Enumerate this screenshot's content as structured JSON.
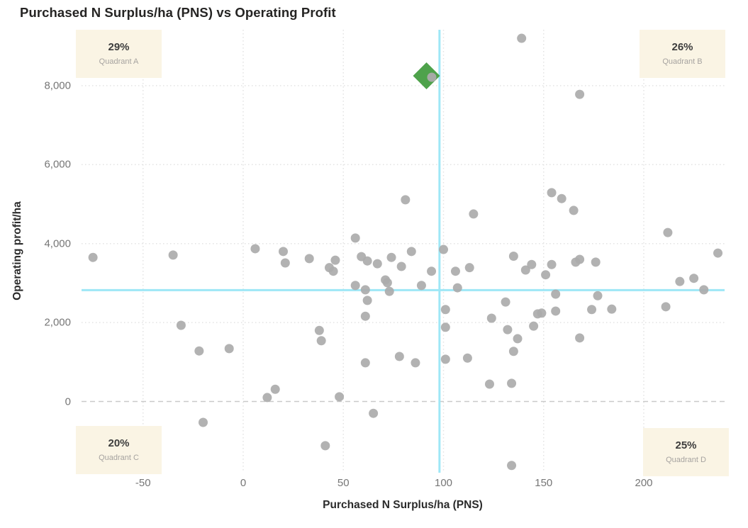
{
  "title": "Purchased N Surplus/ha (PNS) vs Operating Profit",
  "chart_data": {
    "type": "scatter",
    "title": "Purchased N Surplus/ha (PNS) vs Operating Profit",
    "xlabel": "Purchased N Surplus/ha (PNS)",
    "ylabel": "Operating profit/ha",
    "xlim": [
      -80,
      240
    ],
    "ylim": [
      -1800,
      9500
    ],
    "x_ticks": [
      -50,
      0,
      50,
      100,
      150,
      200
    ],
    "x_tick_labels": [
      "-50",
      "0",
      "50",
      "100",
      "150",
      "200"
    ],
    "y_ticks": [
      0,
      2000,
      4000,
      6000,
      8000
    ],
    "y_tick_labels": [
      "0",
      "2,000",
      "4,000",
      "6,000",
      "8,000"
    ],
    "grid": "dotted",
    "legend": "none",
    "reference_lines": {
      "x": 98,
      "y": 2820
    },
    "zero_line_y": 0,
    "points": [
      [
        -75,
        3650
      ],
      [
        -35,
        3710
      ],
      [
        6,
        3870
      ],
      [
        20,
        3800
      ],
      [
        21,
        3510
      ],
      [
        33,
        3620
      ],
      [
        46,
        3580
      ],
      [
        43,
        3390
      ],
      [
        45,
        3300
      ],
      [
        56,
        4140
      ],
      [
        59,
        3670
      ],
      [
        62,
        3560
      ],
      [
        67,
        3490
      ],
      [
        74,
        3650
      ],
      [
        79,
        3420
      ],
      [
        81,
        5110
      ],
      [
        84,
        3800
      ],
      [
        94,
        3300
      ],
      [
        89,
        2940
      ],
      [
        56,
        2940
      ],
      [
        61,
        2830
      ],
      [
        71,
        3080
      ],
      [
        72,
        3010
      ],
      [
        73,
        2790
      ],
      [
        139,
        9200
      ],
      [
        168,
        7780
      ],
      [
        94,
        8210
      ],
      [
        100,
        3850
      ],
      [
        106,
        3300
      ],
      [
        113,
        3390
      ],
      [
        115,
        4750
      ],
      [
        135,
        3680
      ],
      [
        141,
        3330
      ],
      [
        144,
        3470
      ],
      [
        151,
        3210
      ],
      [
        154,
        5290
      ],
      [
        159,
        5140
      ],
      [
        165,
        4840
      ],
      [
        154,
        3470
      ],
      [
        166,
        3530
      ],
      [
        168,
        3600
      ],
      [
        176,
        3530
      ],
      [
        212,
        4280
      ],
      [
        218,
        3040
      ],
      [
        225,
        3120
      ],
      [
        230,
        2830
      ],
      [
        237,
        3760
      ],
      [
        107,
        2880
      ],
      [
        -31,
        1930
      ],
      [
        -22,
        1280
      ],
      [
        -7,
        1340
      ],
      [
        16,
        310
      ],
      [
        12,
        100
      ],
      [
        -20,
        -530
      ],
      [
        38,
        1800
      ],
      [
        39,
        1540
      ],
      [
        48,
        120
      ],
      [
        41,
        -1120
      ],
      [
        62,
        2560
      ],
      [
        61,
        2160
      ],
      [
        61,
        980
      ],
      [
        78,
        1140
      ],
      [
        86,
        980
      ],
      [
        65,
        -300
      ],
      [
        101,
        2330
      ],
      [
        101,
        1880
      ],
      [
        101,
        1070
      ],
      [
        112,
        1100
      ],
      [
        124,
        2110
      ],
      [
        123,
        440
      ],
      [
        131,
        2520
      ],
      [
        132,
        1820
      ],
      [
        134,
        460
      ],
      [
        135,
        1270
      ],
      [
        137,
        1590
      ],
      [
        134,
        -1620
      ],
      [
        145,
        1910
      ],
      [
        147,
        2220
      ],
      [
        149,
        2240
      ],
      [
        156,
        2290
      ],
      [
        156,
        2720
      ],
      [
        168,
        1610
      ],
      [
        174,
        2330
      ],
      [
        184,
        2340
      ],
      [
        177,
        2680
      ],
      [
        211,
        2400
      ]
    ],
    "highlight_point": {
      "x": 91.5,
      "y": 8250,
      "marker": "diamond"
    },
    "quadrants": [
      {
        "id": "A",
        "pct": "29%",
        "label": "Quadrant A",
        "position": "top-left"
      },
      {
        "id": "B",
        "pct": "26%",
        "label": "Quadrant B",
        "position": "top-right"
      },
      {
        "id": "C",
        "pct": "20%",
        "label": "Quadrant C",
        "position": "bottom-left"
      },
      {
        "id": "D",
        "pct": "25%",
        "label": "Quadrant D",
        "position": "bottom-right"
      }
    ],
    "colors": {
      "point": "#ababab",
      "highlight": "#4ea24b",
      "crosshair": "#9ee7f6",
      "quadrant_bg": "#faf4e4",
      "grid": "#e3e3e3",
      "zero_line": "#c9c9c9",
      "tick_text": "#767676",
      "title_text": "#252423"
    }
  }
}
